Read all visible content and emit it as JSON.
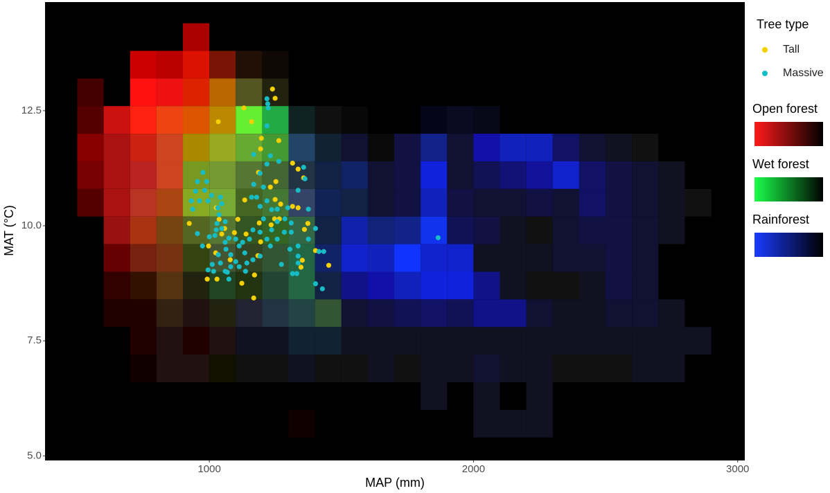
{
  "chart_data": {
    "type": "tile-scatter",
    "xlabel": "MAP (mm)",
    "ylabel": "MAT (°C)",
    "xlim": [
      378,
      3027
    ],
    "ylim": [
      4.9,
      14.86
    ],
    "xticks": [
      1000,
      2000,
      3000
    ],
    "yticks": [
      {
        "value": 5,
        "label": "5.0"
      },
      7.5,
      {
        "value": 10,
        "label": "10.0"
      },
      12.5
    ],
    "grid": false,
    "tile_xbins": [
      500,
      600,
      700,
      800,
      900,
      1000,
      1100,
      1200,
      1300,
      1400,
      1500,
      1600,
      1700,
      1800,
      1900,
      2000,
      2100,
      2200,
      2300,
      2400,
      2500,
      2600,
      2700,
      2800,
      2900
    ],
    "tile_ybins": [
      14.4,
      13.8,
      13.2,
      12.6,
      12,
      11.4,
      10.8,
      10.2,
      9.6,
      9,
      8.4,
      7.8,
      7.2,
      6.6,
      6,
      5.4
    ],
    "tiles": [
      [
        null,
        null,
        null,
        null,
        "#a00"
      ],
      [
        null,
        null,
        "#c00",
        "#b00",
        "#d10",
        "#7a1505",
        "#201005",
        "#100805"
      ],
      [
        "#400",
        null,
        "#f11",
        "#e11",
        "#d20",
        "#b60",
        "#552",
        "#221"
      ],
      [
        "#500",
        "#c11",
        "#f21",
        "#e41",
        "#d50",
        "#b80",
        "#6e3",
        "#2a4",
        "#122",
        "#101010",
        "#080808",
        null,
        null,
        "#05051a",
        "#0a0a22",
        "#080818"
      ],
      [
        "#800",
        "#a11",
        "#c21",
        "#c42",
        "#a80",
        "#9a2",
        "#6a3",
        "#493",
        "#246",
        "#123",
        "#113",
        "#0a0a0a",
        "#114",
        "#128",
        "#113",
        "#11a",
        "#12b",
        "#12b",
        "#116",
        "#113",
        "#112",
        "#111"
      ],
      [
        "#700",
        "#a11",
        "#b22",
        "#c42",
        "#792",
        "#793",
        "#573",
        "#463",
        "#234",
        "#124",
        "#126",
        "#113",
        "#114",
        "#12d",
        "#113",
        "#115",
        "#117",
        "#119",
        "#12c",
        "#116",
        "#114",
        "#113",
        "#112"
      ],
      [
        "#500",
        "#a11",
        "#b32",
        "#a41",
        "#8a2",
        "#7a3",
        "#462",
        "#473",
        "#346",
        "#125",
        "#124",
        "#113",
        "#114",
        "#12b",
        "#114",
        "#113",
        "#113",
        "#114",
        "#113",
        "#116",
        "#114",
        "#113",
        "#112",
        "#111"
      ],
      [
        null,
        "#911",
        "#a31",
        "#741",
        "#562",
        "#573",
        "#352",
        "#362",
        "#364",
        "#124",
        "#12a",
        "#127",
        "#128",
        "#13e",
        "#115",
        "#114",
        "#112",
        "#111",
        "#113",
        "#114",
        "#114",
        "#113",
        "#112"
      ],
      [
        null,
        "#600",
        "#721",
        "#731",
        "#341",
        "#453",
        "#342",
        "#353",
        "#264",
        "#126",
        "#12c",
        "#12b",
        "#13f",
        "#12c",
        "#12c",
        "#112",
        "#112",
        "#112",
        "#113",
        "#113",
        "#114",
        "#113"
      ],
      [
        null,
        "#300",
        "#310",
        "#531",
        "#221",
        "#242",
        "#231",
        "#243",
        "#264",
        "#124",
        "#118",
        "#11a",
        "#12b",
        "#12d",
        "#12d",
        "#118",
        "#112",
        "#111",
        "#111",
        "#112",
        "#114",
        "#113"
      ],
      [
        null,
        "#200",
        "#200",
        "#321",
        "#211",
        "#221",
        "#223",
        "#234",
        "#244",
        "#353",
        "#113",
        "#114",
        "#115",
        "#116",
        "#115",
        "#118",
        "#118",
        "#113",
        "#112",
        "#112",
        "#113",
        "#113",
        "#112"
      ],
      [
        null,
        null,
        "#200",
        "#211",
        "#200",
        "#211",
        "#112",
        "#112",
        "#123",
        "#123",
        "#112",
        "#112",
        "#112",
        "#112",
        "#112",
        "#112",
        "#112",
        "#112",
        "#112",
        "#112",
        "#112",
        "#112",
        "#112",
        "#112"
      ],
      [
        null,
        null,
        "#100",
        "#211",
        "#211",
        "#110",
        "#111",
        "#111",
        "#112",
        "#111",
        "#111",
        "#112",
        "#111",
        "#112",
        "#112",
        "#113",
        "#112",
        "#112",
        "#111",
        "#111",
        "#111",
        "#112",
        "#112"
      ],
      [
        null,
        null,
        null,
        null,
        null,
        null,
        null,
        null,
        null,
        null,
        null,
        null,
        null,
        "#112",
        null,
        "#112",
        null,
        "#112"
      ],
      [
        null,
        null,
        null,
        null,
        null,
        null,
        null,
        null,
        "#100",
        null,
        null,
        null,
        null,
        null,
        null,
        "#112",
        "#112",
        "#112"
      ]
    ],
    "legend_title": "Tree type",
    "series": [
      {
        "name": "Tall",
        "color": "#f5d000",
        "x": [
          1239,
          1249,
          1034,
          1131,
          1160,
          1197,
          1263,
          1194,
          1315,
          1186,
          1336,
          1357,
          1252,
          1231,
          1134,
          1249,
          1270,
          1315,
          1336,
          1265,
          1026,
          1247,
          1108,
          1189,
          1373,
          924,
          1037,
          1234,
          1058,
          1360,
          1047,
          1095,
          1139,
          997,
          1194,
          1024,
          1402,
          1079,
          1184,
          1352,
          1452,
          992,
          1029,
          1347,
          1123,
          1171,
          1168
        ],
        "y": [
          12.97,
          12.77,
          12.26,
          12.56,
          12.26,
          11.9,
          11.85,
          11.67,
          11.36,
          11.16,
          11.23,
          11.04,
          10.96,
          10.84,
          10.56,
          10.57,
          10.47,
          10.42,
          10.39,
          10.15,
          10.39,
          10.15,
          10.14,
          10.06,
          10.05,
          10.05,
          10.14,
          10.02,
          9.94,
          9.92,
          9.82,
          9.85,
          9.82,
          9.56,
          9.65,
          9.41,
          9.46,
          9.26,
          9.35,
          9.25,
          9.14,
          8.84,
          8.84,
          9.1,
          8.75,
          8.93,
          8.43
        ]
      },
      {
        "name": "Massive",
        "color": "#17bcc4",
        "x": [
          1218,
          1221,
          1223,
          1218,
          976,
          955,
          990,
          948,
          982,
          932,
          963,
          995,
          937,
          1008,
          1042,
          1047,
          1032,
          1037,
          1060,
          1029,
          1026,
          1047,
          955,
          1000,
          974,
          1021,
          1060,
          1074,
          1100,
          1063,
          1034,
          1081,
          1113,
          1126,
          1152,
          1134,
          1113,
          1081,
          1060,
          1016,
          1011,
          1042,
          1100,
          1142,
          1165,
          1192,
          1231,
          1218,
          1165,
          1192,
          1205,
          1236,
          1257,
          1297,
          1192,
          1218,
          1179,
          1205,
          1160,
          1168,
          1192,
          1218,
          1231,
          1263,
          1357,
          1362,
          1336,
          1375,
          1402,
          1375,
          1415,
          1433,
          1336,
          1336,
          1331,
          1336,
          1305,
          1310,
          1284,
          1257,
          1236,
          1257,
          1286,
          1310,
          1273,
          1315,
          1402,
          1428,
          1074,
          1068,
          1137,
          995,
          1866,
          1168
        ],
        "y": [
          12.76,
          12.65,
          12.56,
          12.17,
          11.16,
          10.96,
          10.96,
          10.75,
          10.77,
          10.54,
          10.54,
          10.54,
          10.36,
          10.66,
          10.62,
          10.48,
          10.39,
          10.24,
          10.09,
          10.05,
          9.91,
          9.94,
          9.83,
          9.76,
          9.56,
          9.79,
          9.64,
          9.73,
          9.71,
          9.49,
          9.37,
          9.37,
          9.56,
          9.64,
          9.71,
          9.41,
          9.11,
          9.11,
          9.01,
          9.01,
          9.16,
          9.19,
          9.22,
          9.19,
          9.26,
          9.34,
          9.56,
          9.71,
          9.91,
          9.86,
          10.15,
          10.35,
          10.36,
          10.39,
          10.42,
          10.54,
          10.62,
          10.84,
          10.62,
          10.9,
          11.14,
          11.34,
          11.52,
          11.4,
          11.27,
          11.02,
          10.77,
          10.36,
          9.94,
          9.71,
          9.44,
          9.44,
          9.56,
          9.34,
          8.96,
          9.19,
          9.49,
          9.86,
          9.86,
          9.71,
          9.91,
          10.09,
          10.15,
          10.06,
          9.16,
          8.96,
          8.74,
          8.63,
          8.84,
          8.99,
          9.01,
          9.04,
          9.74,
          11.55
        ]
      }
    ],
    "color_legends": [
      {
        "title": "Open forest",
        "colors": [
          "#ff1a1a",
          "#000000"
        ]
      },
      {
        "title": "Wet forest",
        "colors": [
          "#1aff4a",
          "#000000"
        ]
      },
      {
        "title": "Rainforest",
        "colors": [
          "#1a3aff",
          "#000000"
        ]
      }
    ]
  }
}
